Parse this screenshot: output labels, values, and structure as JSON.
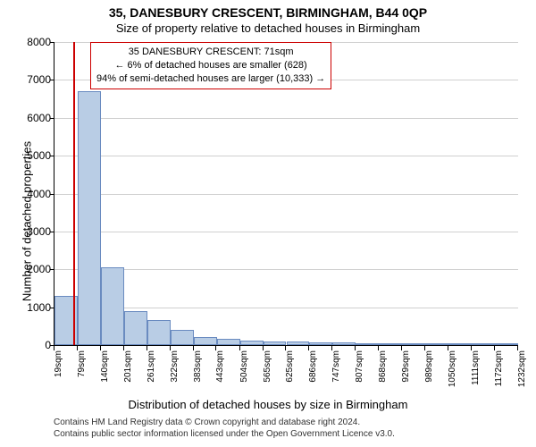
{
  "title": "35, DANESBURY CRESCENT, BIRMINGHAM, B44 0QP",
  "subtitle": "Size of property relative to detached houses in Birmingham",
  "ylabel": "Number of detached properties",
  "xlabel": "Distribution of detached houses by size in Birmingham",
  "chart": {
    "type": "histogram",
    "background_color": "#ffffff",
    "grid_color": "#b0b0b0",
    "bar_fill": "#b9cde5",
    "bar_border": "#6a8bc0",
    "vline_color": "#cc0000",
    "vline_x": 71,
    "ylim": [
      0,
      8000
    ],
    "ytick_step": 1000,
    "xticks": [
      19,
      79,
      140,
      201,
      261,
      322,
      383,
      443,
      504,
      565,
      625,
      686,
      747,
      807,
      868,
      929,
      989,
      1050,
      1111,
      1172,
      1232
    ],
    "xtick_unit": "sqm",
    "bin_width": 60.65,
    "x_start": 19,
    "values": [
      1300,
      6700,
      2050,
      900,
      650,
      400,
      220,
      170,
      110,
      100,
      90,
      80,
      60,
      50,
      40,
      35,
      30,
      25,
      20,
      15
    ],
    "title_fontsize": 14,
    "subtitle_fontsize": 13,
    "label_fontsize": 13,
    "tick_fontsize_y": 12,
    "tick_fontsize_x": 10
  },
  "annotation": {
    "line1": "35 DANESBURY CRESCENT: 71sqm",
    "line2": "← 6% of detached houses are smaller (628)",
    "line3": "94% of semi-detached houses are larger (10,333) →",
    "border_color": "#cc0000",
    "fontsize": 11
  },
  "footer": {
    "line1": "Contains HM Land Registry data © Crown copyright and database right 2024.",
    "line2": "Contains public sector information licensed under the Open Government Licence v3.0."
  }
}
